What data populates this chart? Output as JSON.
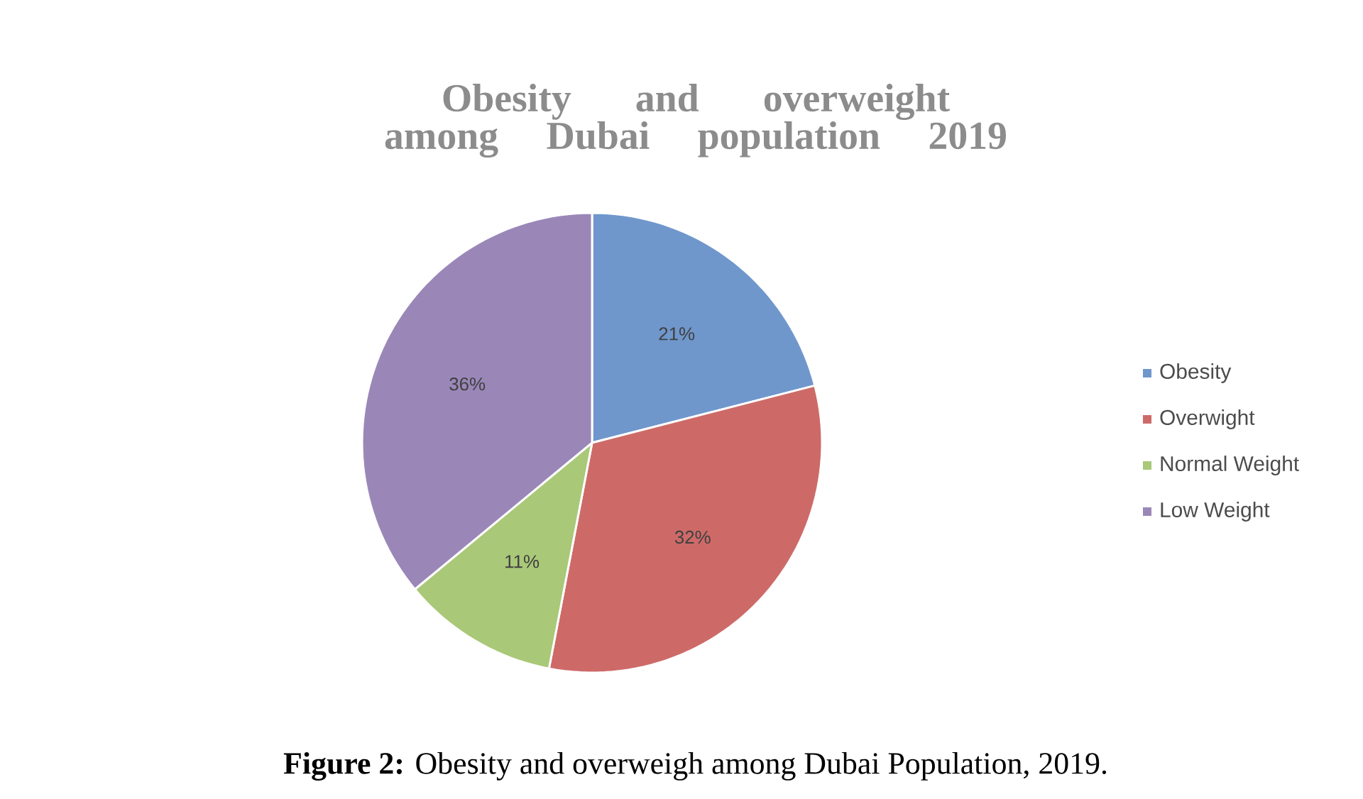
{
  "chart_data": {
    "type": "pie",
    "title": "Obesity and overweight among Dubai population 2019",
    "categories": [
      "Obesity",
      "Overwight",
      "Normal Weight",
      "Low Weight"
    ],
    "values": [
      21,
      32,
      11,
      36
    ],
    "value_labels": [
      "21%",
      "32%",
      "11%",
      "36%"
    ],
    "colors": [
      "#6f97cc",
      "#cd6a68",
      "#a9c878",
      "#9a87b8"
    ],
    "legend": "right",
    "annotations": [
      "**Figure 2:** Obesity and overweigh among Dubai Population, 2019."
    ]
  }
}
